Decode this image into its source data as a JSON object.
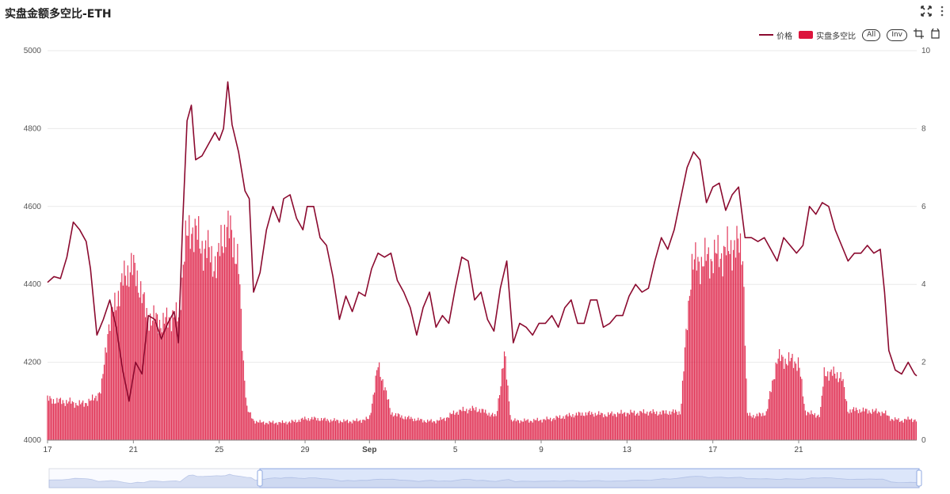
{
  "header": {
    "title": "实盘金额多空比-ETH",
    "fullscreen_icon": "expand-arrows-icon",
    "menu_icon": "kebab-menu-icon"
  },
  "legend": {
    "price_label": "价格",
    "ratio_label": "实盘多空比",
    "all_label": "All",
    "inv_label": "Inv",
    "crop_icon": "crop-icon",
    "restore_icon": "restore-icon"
  },
  "colors": {
    "price_line": "#8b0a2f",
    "ratio_bar": "#dc143c",
    "grid": "#e9e9e9",
    "zoom_fill": "#dce6fa"
  },
  "chart_data": {
    "type": "bar",
    "x_tick_labels": [
      "17",
      "21",
      "25",
      "29",
      "Sep",
      "5",
      "9",
      "13",
      "17",
      "21"
    ],
    "y_left_ticks": [
      "4000",
      "4200",
      "4400",
      "4600",
      "4800",
      "5000"
    ],
    "y_right_ticks": [
      "0",
      "2",
      "4",
      "6",
      "8",
      "10"
    ],
    "y_left_range": [
      4000,
      5000
    ],
    "y_right_range": [
      0,
      10
    ],
    "x_range": [
      17,
      57.5
    ],
    "grid": true,
    "legend_position": "top-right",
    "series": [
      {
        "name": "价格",
        "type": "line",
        "axis": "left",
        "points": [
          [
            17.0,
            4405
          ],
          [
            17.3,
            4420
          ],
          [
            17.6,
            4415
          ],
          [
            17.9,
            4470
          ],
          [
            18.2,
            4560
          ],
          [
            18.5,
            4540
          ],
          [
            18.8,
            4510
          ],
          [
            19.0,
            4440
          ],
          [
            19.3,
            4270
          ],
          [
            19.6,
            4310
          ],
          [
            19.9,
            4360
          ],
          [
            20.2,
            4290
          ],
          [
            20.5,
            4180
          ],
          [
            20.8,
            4100
          ],
          [
            21.1,
            4200
          ],
          [
            21.4,
            4170
          ],
          [
            21.7,
            4320
          ],
          [
            22.0,
            4310
          ],
          [
            22.3,
            4260
          ],
          [
            22.6,
            4300
          ],
          [
            22.9,
            4330
          ],
          [
            23.1,
            4250
          ],
          [
            23.3,
            4560
          ],
          [
            23.5,
            4820
          ],
          [
            23.7,
            4860
          ],
          [
            23.9,
            4720
          ],
          [
            24.2,
            4730
          ],
          [
            24.5,
            4760
          ],
          [
            24.8,
            4790
          ],
          [
            25.0,
            4770
          ],
          [
            25.2,
            4800
          ],
          [
            25.4,
            4920
          ],
          [
            25.6,
            4810
          ],
          [
            25.9,
            4740
          ],
          [
            26.2,
            4640
          ],
          [
            26.4,
            4620
          ],
          [
            26.6,
            4380
          ],
          [
            26.9,
            4430
          ],
          [
            27.2,
            4540
          ],
          [
            27.5,
            4600
          ],
          [
            27.8,
            4560
          ],
          [
            28.0,
            4620
          ],
          [
            28.3,
            4630
          ],
          [
            28.6,
            4570
          ],
          [
            28.9,
            4540
          ],
          [
            29.1,
            4600
          ],
          [
            29.4,
            4600
          ],
          [
            29.7,
            4520
          ],
          [
            30.0,
            4500
          ],
          [
            30.3,
            4420
          ],
          [
            30.6,
            4310
          ],
          [
            30.9,
            4370
          ],
          [
            31.2,
            4330
          ],
          [
            31.5,
            4380
          ],
          [
            31.8,
            4370
          ],
          [
            32.1,
            4440
          ],
          [
            32.4,
            4480
          ],
          [
            32.7,
            4470
          ],
          [
            33.0,
            4480
          ],
          [
            33.3,
            4410
          ],
          [
            33.6,
            4380
          ],
          [
            33.9,
            4340
          ],
          [
            34.2,
            4270
          ],
          [
            34.5,
            4340
          ],
          [
            34.8,
            4380
          ],
          [
            35.1,
            4290
          ],
          [
            35.4,
            4320
          ],
          [
            35.7,
            4300
          ],
          [
            36.0,
            4390
          ],
          [
            36.3,
            4470
          ],
          [
            36.6,
            4460
          ],
          [
            36.9,
            4360
          ],
          [
            37.2,
            4380
          ],
          [
            37.5,
            4310
          ],
          [
            37.8,
            4280
          ],
          [
            38.1,
            4390
          ],
          [
            38.4,
            4460
          ],
          [
            38.7,
            4250
          ],
          [
            39.0,
            4300
          ],
          [
            39.3,
            4290
          ],
          [
            39.6,
            4270
          ],
          [
            39.9,
            4300
          ],
          [
            40.2,
            4300
          ],
          [
            40.5,
            4320
          ],
          [
            40.8,
            4290
          ],
          [
            41.1,
            4340
          ],
          [
            41.4,
            4360
          ],
          [
            41.7,
            4300
          ],
          [
            42.0,
            4300
          ],
          [
            42.3,
            4360
          ],
          [
            42.6,
            4360
          ],
          [
            42.9,
            4290
          ],
          [
            43.2,
            4300
          ],
          [
            43.5,
            4320
          ],
          [
            43.8,
            4320
          ],
          [
            44.1,
            4370
          ],
          [
            44.4,
            4400
          ],
          [
            44.7,
            4380
          ],
          [
            45.0,
            4390
          ],
          [
            45.3,
            4460
          ],
          [
            45.6,
            4520
          ],
          [
            45.9,
            4490
          ],
          [
            46.2,
            4540
          ],
          [
            46.5,
            4620
          ],
          [
            46.8,
            4700
          ],
          [
            47.1,
            4740
          ],
          [
            47.4,
            4720
          ],
          [
            47.7,
            4610
          ],
          [
            48.0,
            4650
          ],
          [
            48.3,
            4660
          ],
          [
            48.6,
            4590
          ],
          [
            48.9,
            4630
          ],
          [
            49.2,
            4650
          ],
          [
            49.5,
            4520
          ],
          [
            49.8,
            4520
          ],
          [
            50.1,
            4510
          ],
          [
            50.4,
            4520
          ],
          [
            50.7,
            4490
          ],
          [
            51.0,
            4460
          ],
          [
            51.3,
            4520
          ],
          [
            51.6,
            4500
          ],
          [
            51.9,
            4480
          ],
          [
            52.2,
            4500
          ],
          [
            52.5,
            4600
          ],
          [
            52.8,
            4580
          ],
          [
            53.1,
            4610
          ],
          [
            53.4,
            4600
          ],
          [
            53.7,
            4540
          ],
          [
            54.0,
            4500
          ],
          [
            54.3,
            4460
          ],
          [
            54.6,
            4480
          ],
          [
            54.9,
            4480
          ],
          [
            55.2,
            4500
          ],
          [
            55.5,
            4480
          ],
          [
            55.8,
            4490
          ],
          [
            56.0,
            4380
          ],
          [
            56.2,
            4230
          ],
          [
            56.5,
            4180
          ],
          [
            56.8,
            4170
          ],
          [
            57.1,
            4200
          ],
          [
            57.4,
            4170
          ],
          [
            57.5,
            4165
          ]
        ]
      },
      {
        "name": "实盘多空比",
        "type": "bar",
        "axis": "right",
        "points": [
          [
            17.0,
            1.05
          ],
          [
            17.5,
            1.0
          ],
          [
            18.0,
            0.98
          ],
          [
            18.5,
            0.92
          ],
          [
            19.0,
            1.0
          ],
          [
            19.5,
            1.25
          ],
          [
            19.8,
            2.8
          ],
          [
            20.2,
            3.6
          ],
          [
            20.6,
            4.2
          ],
          [
            20.9,
            4.5
          ],
          [
            21.3,
            4.0
          ],
          [
            21.6,
            3.2
          ],
          [
            22.0,
            3.1
          ],
          [
            22.4,
            3.0
          ],
          [
            22.8,
            3.2
          ],
          [
            23.1,
            3.1
          ],
          [
            23.4,
            5.0
          ],
          [
            23.7,
            5.5
          ],
          [
            24.0,
            5.2
          ],
          [
            24.3,
            4.9
          ],
          [
            24.6,
            4.8
          ],
          [
            24.9,
            4.4
          ],
          [
            25.1,
            5.2
          ],
          [
            25.3,
            5.4
          ],
          [
            25.6,
            5.3
          ],
          [
            25.9,
            4.5
          ],
          [
            26.1,
            2.2
          ],
          [
            26.3,
            0.8
          ],
          [
            26.6,
            0.5
          ],
          [
            27.0,
            0.45
          ],
          [
            27.5,
            0.45
          ],
          [
            28.0,
            0.45
          ],
          [
            28.5,
            0.48
          ],
          [
            29.0,
            0.55
          ],
          [
            29.5,
            0.55
          ],
          [
            30.0,
            0.52
          ],
          [
            30.5,
            0.5
          ],
          [
            31.0,
            0.48
          ],
          [
            31.5,
            0.5
          ],
          [
            32.0,
            0.55
          ],
          [
            32.4,
            1.9
          ],
          [
            32.7,
            1.4
          ],
          [
            33.0,
            0.7
          ],
          [
            33.5,
            0.6
          ],
          [
            34.0,
            0.55
          ],
          [
            34.5,
            0.5
          ],
          [
            35.0,
            0.48
          ],
          [
            35.5,
            0.55
          ],
          [
            36.0,
            0.72
          ],
          [
            36.5,
            0.78
          ],
          [
            37.0,
            0.8
          ],
          [
            37.5,
            0.7
          ],
          [
            37.9,
            0.6
          ],
          [
            38.3,
            2.2
          ],
          [
            38.6,
            0.5
          ],
          [
            39.0,
            0.5
          ],
          [
            39.5,
            0.5
          ],
          [
            40.0,
            0.52
          ],
          [
            40.5,
            0.55
          ],
          [
            41.0,
            0.6
          ],
          [
            41.5,
            0.65
          ],
          [
            42.0,
            0.68
          ],
          [
            42.5,
            0.68
          ],
          [
            43.0,
            0.65
          ],
          [
            43.5,
            0.68
          ],
          [
            44.0,
            0.7
          ],
          [
            44.5,
            0.7
          ],
          [
            45.0,
            0.72
          ],
          [
            45.5,
            0.7
          ],
          [
            46.0,
            0.72
          ],
          [
            46.5,
            0.72
          ],
          [
            47.0,
            4.5
          ],
          [
            47.5,
            4.6
          ],
          [
            48.0,
            4.7
          ],
          [
            48.5,
            4.8
          ],
          [
            49.0,
            5.0
          ],
          [
            49.4,
            4.9
          ],
          [
            49.6,
            0.65
          ],
          [
            50.0,
            0.62
          ],
          [
            50.5,
            0.7
          ],
          [
            51.0,
            2.1
          ],
          [
            51.5,
            2.05
          ],
          [
            52.0,
            2.0
          ],
          [
            52.3,
            0.75
          ],
          [
            52.7,
            0.65
          ],
          [
            53.0,
            0.65
          ],
          [
            53.2,
            1.75
          ],
          [
            53.6,
            1.7
          ],
          [
            54.0,
            1.65
          ],
          [
            54.3,
            0.75
          ],
          [
            54.7,
            0.78
          ],
          [
            55.0,
            0.76
          ],
          [
            55.5,
            0.74
          ],
          [
            56.0,
            0.7
          ],
          [
            56.3,
            0.55
          ],
          [
            56.8,
            0.5
          ],
          [
            57.2,
            0.55
          ],
          [
            57.5,
            0.5
          ]
        ]
      }
    ]
  }
}
